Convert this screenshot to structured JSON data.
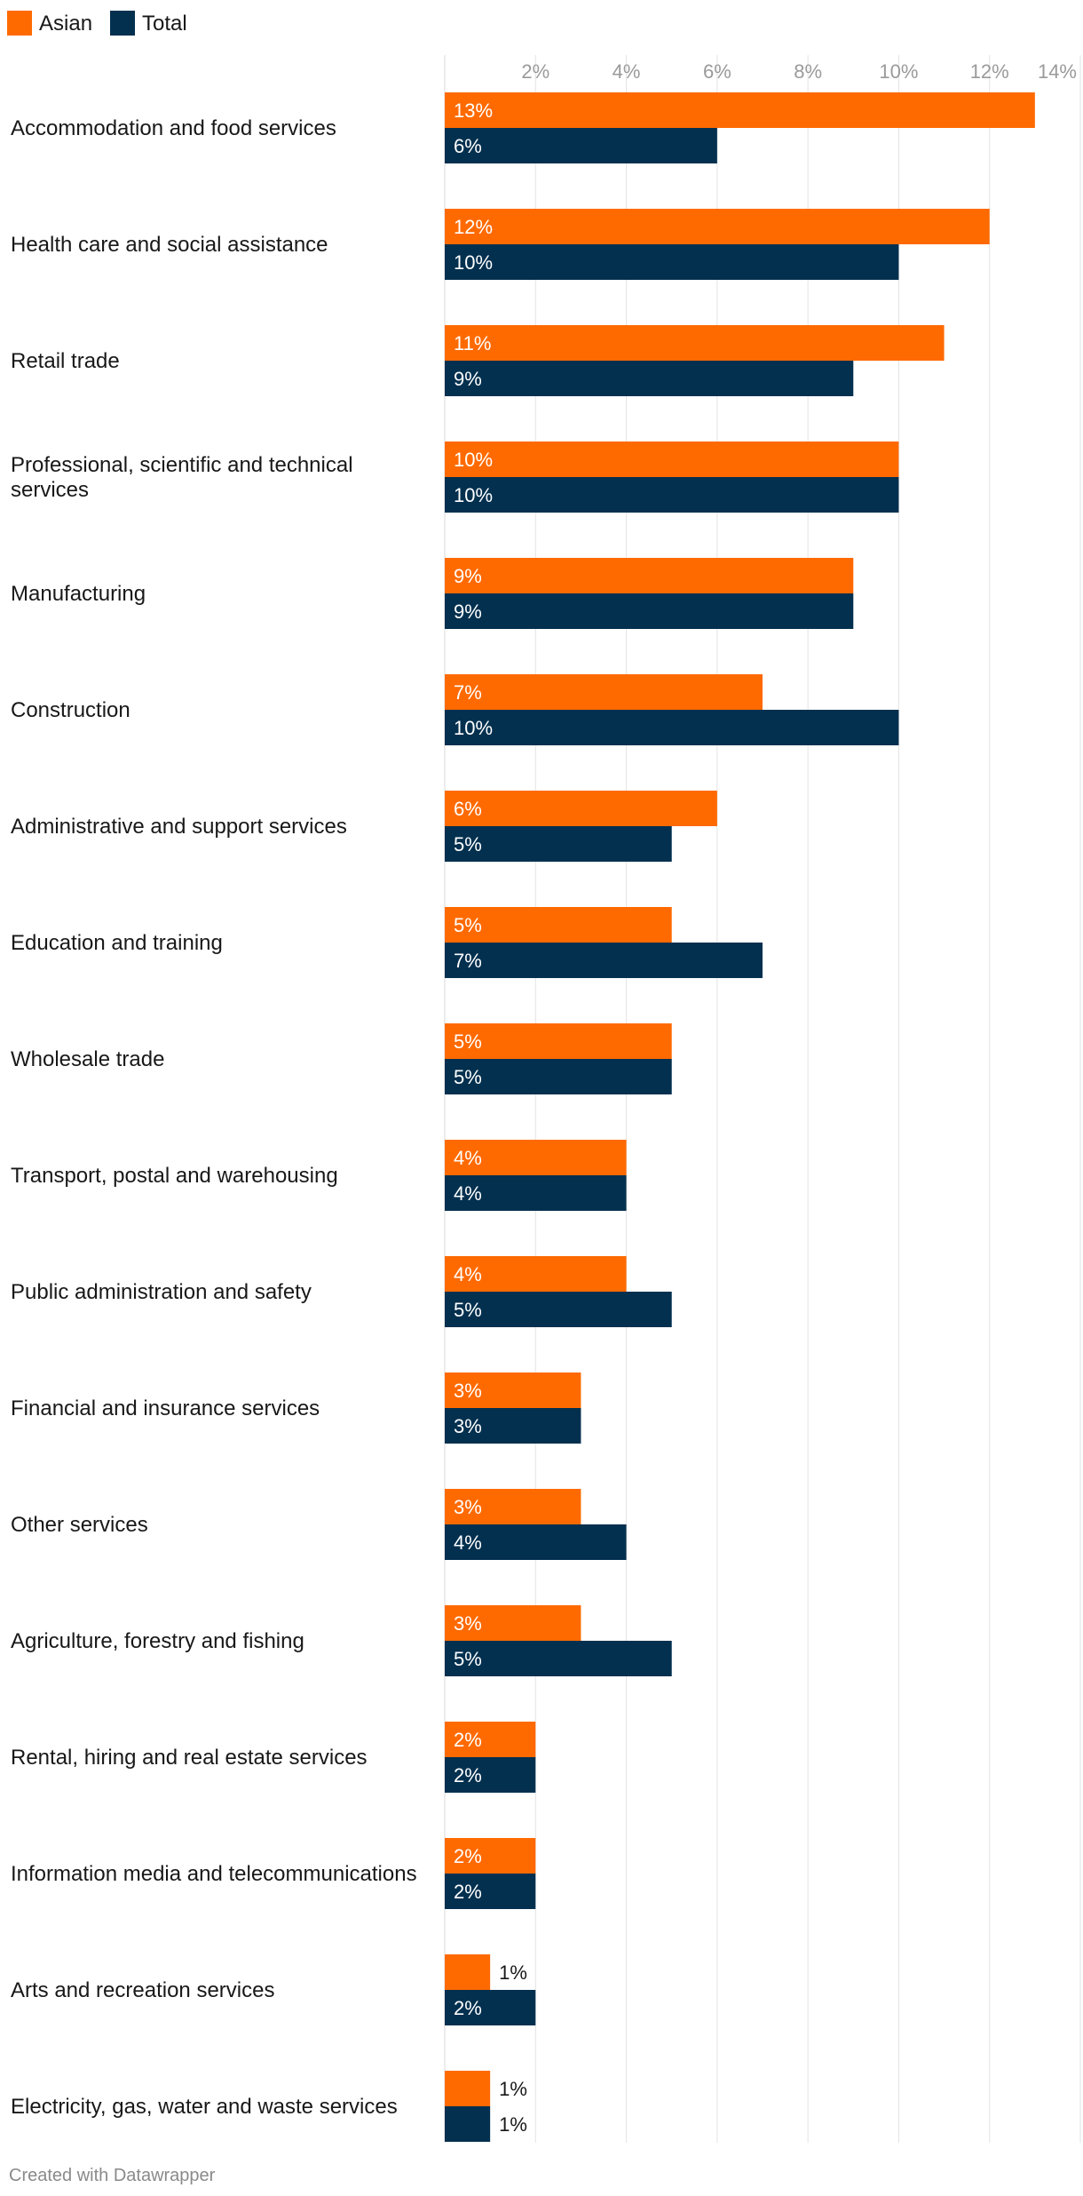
{
  "chart_data": {
    "type": "bar",
    "orientation": "horizontal",
    "title": "",
    "xlabel": "",
    "ylabel": "",
    "xlim": [
      0,
      14
    ],
    "grid": true,
    "legend_position": "top-left",
    "ticks": [
      {
        "value": 2,
        "label": "2%"
      },
      {
        "value": 4,
        "label": "4%"
      },
      {
        "value": 6,
        "label": "6%"
      },
      {
        "value": 8,
        "label": "8%"
      },
      {
        "value": 10,
        "label": "10%"
      },
      {
        "value": 12,
        "label": "12%"
      },
      {
        "value": 14,
        "label": "14%"
      }
    ],
    "categories": [
      "Accommodation and food services",
      "Health care and social assistance",
      "Retail trade",
      "Professional, scientific and technical services",
      "Manufacturing",
      "Construction",
      "Administrative and support services",
      "Education and training",
      "Wholesale trade",
      "Transport, postal and warehousing",
      "Public administration and safety",
      "Financial and insurance services",
      "Other services",
      "Agriculture, forestry and fishing",
      "Rental, hiring and real estate services",
      "Information media and telecommunications",
      "Arts and recreation services",
      "Electricity, gas, water and waste services"
    ],
    "series": [
      {
        "name": "Asian",
        "color": "#ff6a00",
        "values": [
          13,
          12,
          11,
          10,
          9,
          7,
          6,
          5,
          5,
          4,
          4,
          3,
          3,
          3,
          2,
          2,
          1,
          1
        ],
        "labels": [
          "13%",
          "12%",
          "11%",
          "10%",
          "9%",
          "7%",
          "6%",
          "5%",
          "5%",
          "4%",
          "4%",
          "3%",
          "3%",
          "3%",
          "2%",
          "2%",
          "1%",
          "1%"
        ]
      },
      {
        "name": "Total",
        "color": "#03304f",
        "values": [
          6,
          10,
          9,
          10,
          9,
          10,
          5,
          7,
          5,
          4,
          5,
          3,
          4,
          5,
          2,
          2,
          2,
          1
        ],
        "labels": [
          "6%",
          "10%",
          "9%",
          "10%",
          "9%",
          "10%",
          "5%",
          "7%",
          "5%",
          "4%",
          "5%",
          "3%",
          "4%",
          "5%",
          "2%",
          "2%",
          "2%",
          "1%"
        ]
      }
    ]
  },
  "footer": {
    "credit": "Created with Datawrapper"
  }
}
